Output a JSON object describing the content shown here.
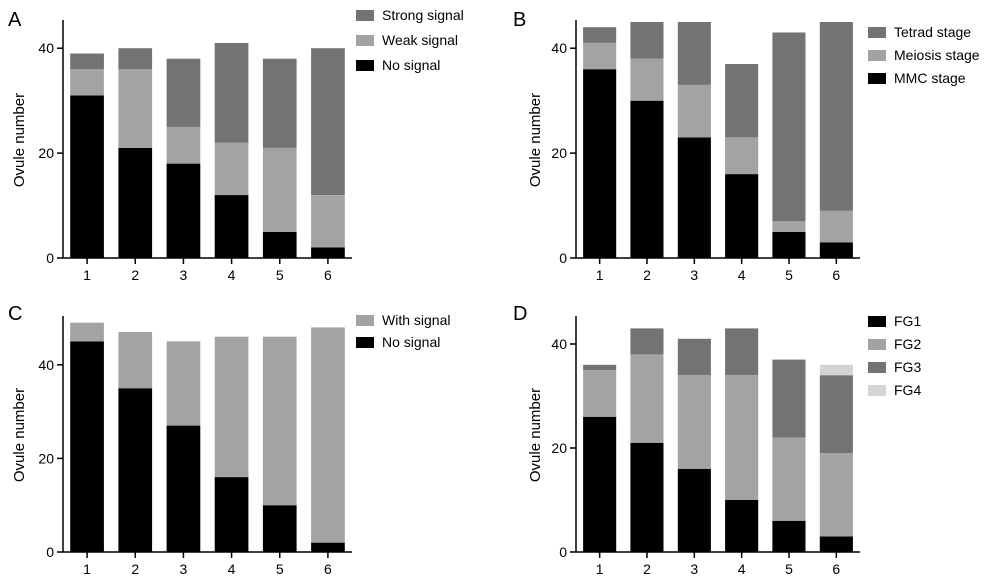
{
  "chart_data": [
    {
      "type": "bar",
      "stacked": true,
      "panel_label": "A",
      "categories": [
        "1",
        "2",
        "3",
        "4",
        "5",
        "6"
      ],
      "ylabel": "Ovule number",
      "ylim": [
        0,
        45
      ],
      "yticks": [
        0,
        20,
        40
      ],
      "legend_position": "top-right",
      "series": [
        {
          "name": "No signal",
          "color": "#000000",
          "values": [
            31,
            21,
            18,
            12,
            5,
            2
          ]
        },
        {
          "name": "Weak signal",
          "color": "#a3a3a3",
          "values": [
            5,
            15,
            7,
            10,
            16,
            10
          ]
        },
        {
          "name": "Strong signal",
          "color": "#737373",
          "values": [
            3,
            4,
            13,
            19,
            17,
            28
          ]
        }
      ]
    },
    {
      "type": "bar",
      "stacked": true,
      "panel_label": "B",
      "categories": [
        "1",
        "2",
        "3",
        "4",
        "5",
        "6"
      ],
      "ylabel": "Ovule number",
      "ylim": [
        0,
        45
      ],
      "yticks": [
        0,
        20,
        40
      ],
      "legend_position": "top-right",
      "series": [
        {
          "name": "MMC stage",
          "color": "#000000",
          "values": [
            36,
            30,
            23,
            16,
            5,
            3
          ]
        },
        {
          "name": "Meiosis stage",
          "color": "#a3a3a3",
          "values": [
            5,
            8,
            10,
            7,
            2,
            6
          ]
        },
        {
          "name": "Tetrad stage",
          "color": "#737373",
          "values": [
            3,
            7,
            12,
            14,
            36,
            36
          ]
        }
      ]
    },
    {
      "type": "bar",
      "stacked": true,
      "panel_label": "C",
      "categories": [
        "1",
        "2",
        "3",
        "4",
        "5",
        "6"
      ],
      "ylabel": "Ovule number",
      "ylim": [
        0,
        50
      ],
      "yticks": [
        0,
        20,
        40
      ],
      "legend_position": "top-right",
      "series": [
        {
          "name": "No signal",
          "color": "#000000",
          "values": [
            45,
            35,
            27,
            16,
            10,
            2
          ]
        },
        {
          "name": "With signal",
          "color": "#a3a3a3",
          "values": [
            4,
            12,
            18,
            30,
            36,
            46
          ]
        }
      ]
    },
    {
      "type": "bar",
      "stacked": true,
      "panel_label": "D",
      "categories": [
        "1",
        "2",
        "3",
        "4",
        "5",
        "6"
      ],
      "ylabel": "Ovule number",
      "ylim": [
        0,
        45
      ],
      "yticks": [
        0,
        20,
        40
      ],
      "legend_position": "top-right",
      "series": [
        {
          "name": "FG1",
          "color": "#000000",
          "values": [
            26,
            21,
            16,
            10,
            6,
            3
          ]
        },
        {
          "name": "FG2",
          "color": "#a3a3a3",
          "values": [
            9,
            17,
            18,
            24,
            16,
            16
          ]
        },
        {
          "name": "FG3",
          "color": "#737373",
          "values": [
            1,
            5,
            7,
            9,
            15,
            15
          ]
        },
        {
          "name": "FG4",
          "color": "#d4d4d4",
          "values": [
            0,
            0,
            0,
            0,
            0,
            2
          ]
        }
      ]
    }
  ]
}
